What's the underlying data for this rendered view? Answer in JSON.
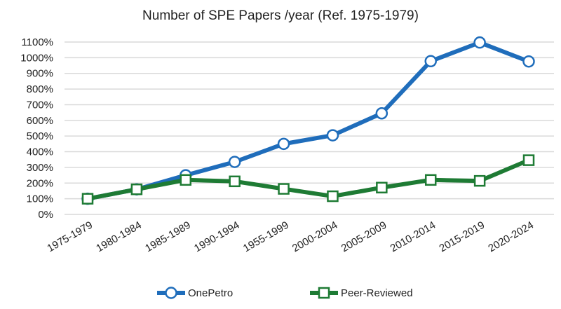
{
  "chart_data": {
    "type": "line",
    "title": "Number of SPE Papers /year (Ref. 1975-1979)",
    "xlabel": "",
    "ylabel": "",
    "categories": [
      "1975-1979",
      "1980-1984",
      "1985-1989",
      "1990-1994",
      "1955-1999",
      "2000-2004",
      "2005-2009",
      "2010-2014",
      "2015-2019",
      "2020-2024"
    ],
    "y_ticks": [
      "0%",
      "100%",
      "200%",
      "300%",
      "400%",
      "500%",
      "600%",
      "700%",
      "800%",
      "900%",
      "1000%",
      "1100%"
    ],
    "ylim": [
      0,
      1100
    ],
    "grid": true,
    "legend_position": "bottom",
    "series": [
      {
        "name": "OnePetro",
        "color": "#1f6dbb",
        "marker": "circle",
        "values": [
          100,
          160,
          250,
          335,
          450,
          505,
          645,
          978,
          1097,
          976
        ]
      },
      {
        "name": "Peer-Reviewed",
        "color": "#1e7b34",
        "marker": "square",
        "values": [
          100,
          160,
          220,
          211,
          163,
          116,
          171,
          220,
          214,
          346
        ]
      }
    ]
  }
}
